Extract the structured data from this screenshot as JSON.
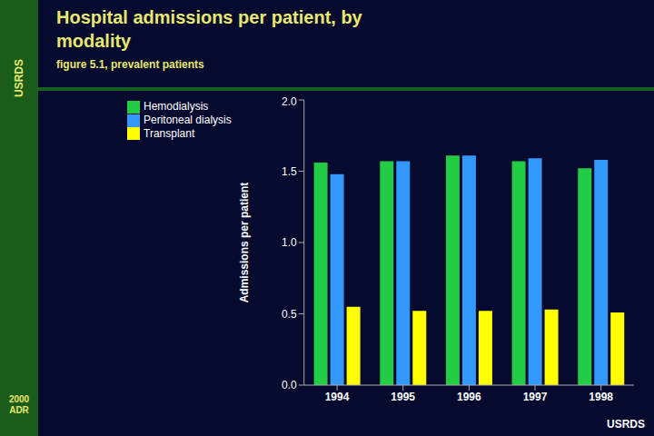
{
  "chart_data": {
    "type": "bar",
    "title": "Hospital admissions per patient, by\nmodality",
    "subtitle": "figure 5.1, prevalent patients",
    "ylabel": "Admissions per patient",
    "categories": [
      "1994",
      "1995",
      "1996",
      "1997",
      "1998"
    ],
    "series": [
      {
        "name": "Hemodialysis",
        "color": "#22cc44",
        "values": [
          1.56,
          1.57,
          1.61,
          1.57,
          1.52
        ]
      },
      {
        "name": "Peritoneal dialysis",
        "color": "#3399ff",
        "values": [
          1.48,
          1.57,
          1.61,
          1.59,
          1.58
        ]
      },
      {
        "name": "Transplant",
        "color": "#ffff00",
        "values": [
          0.55,
          0.52,
          0.52,
          0.53,
          0.51
        ]
      }
    ],
    "ylim": [
      0.0,
      2.0
    ],
    "yticks": [
      {
        "value": 0,
        "label": "0.0"
      },
      {
        "value": 0.5,
        "label": "0.5"
      },
      {
        "value": 1,
        "label": "1.0"
      },
      {
        "value": 1.5,
        "label": "1.5"
      },
      {
        "value": 2,
        "label": "2.0"
      }
    ],
    "grid": false,
    "legend": "upper left",
    "annotations": [
      "USRDS",
      "2000\nADR",
      "USRDS"
    ]
  }
}
